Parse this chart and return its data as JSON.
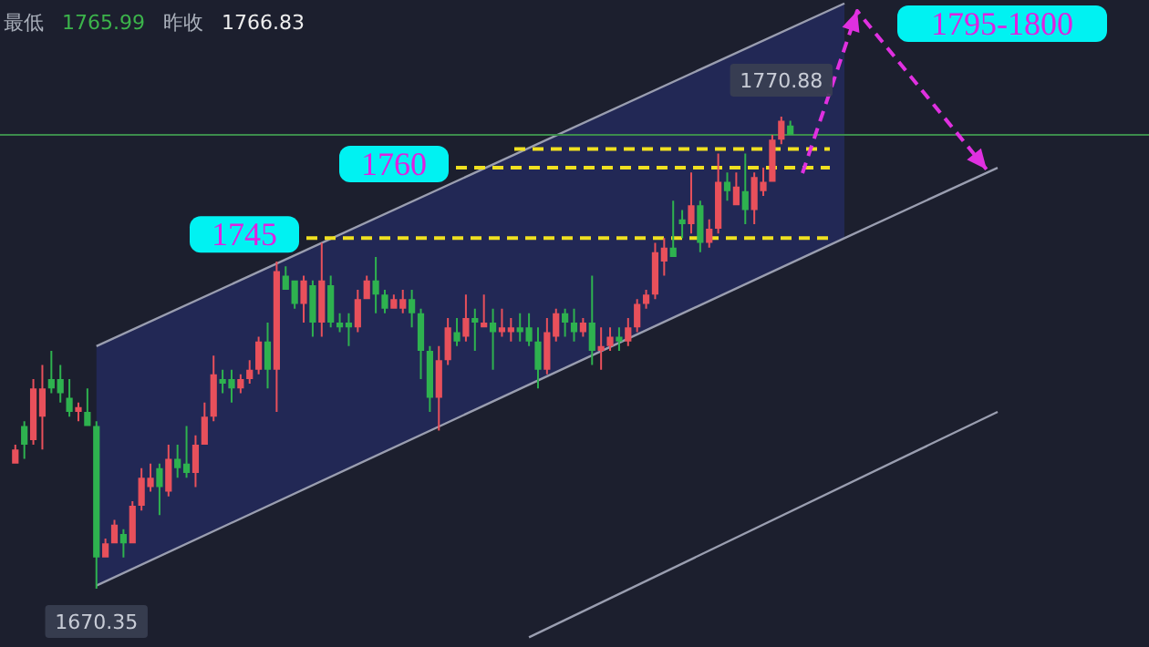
{
  "chart_data": {
    "type": "candlestick",
    "categories": [
      null,
      null,
      null,
      null,
      null,
      null,
      null,
      null,
      null,
      null,
      null,
      null,
      null,
      null,
      null,
      null,
      null,
      null,
      null,
      null,
      null,
      null,
      null,
      null,
      null,
      null,
      null,
      null,
      null,
      null,
      null,
      null,
      null,
      null,
      null,
      null,
      null,
      null,
      null,
      null,
      null,
      null,
      null,
      null,
      null,
      null,
      null,
      null,
      null,
      null,
      null,
      null,
      null,
      null,
      null,
      null,
      null,
      null,
      null,
      null,
      null,
      null,
      null,
      null,
      null,
      null,
      null,
      null,
      null,
      null,
      null,
      null,
      null,
      null,
      null,
      null,
      null,
      null,
      null,
      null,
      null,
      null,
      null,
      null,
      null,
      null,
      null,
      null,
      null,
      null,
      null,
      null,
      null,
      null,
      null,
      null,
      null,
      null,
      null,
      null,
      null,
      null,
      null,
      null,
      null,
      null,
      null,
      null,
      null,
      null,
      null,
      null,
      null,
      null,
      null,
      null,
      null,
      null,
      null,
      null,
      null,
      null,
      null,
      null,
      null,
      null
    ],
    "ohlc": [
      [
        1697,
        1701,
        1697,
        1700
      ],
      [
        1705,
        1706,
        1698,
        1701
      ],
      [
        1702,
        1715,
        1701,
        1713
      ],
      [
        1707,
        1718,
        1700,
        1713
      ],
      [
        1715,
        1721,
        1712,
        1713
      ],
      [
        1715,
        1718,
        1710,
        1712
      ],
      [
        1711,
        1715,
        1707,
        1708
      ],
      [
        1708,
        1710,
        1706,
        1709
      ],
      [
        1708,
        1713,
        1705,
        1705
      ],
      [
        1705,
        1706,
        1670.35,
        1677
      ],
      [
        1677,
        1681,
        1677,
        1680
      ],
      [
        1680,
        1685,
        1680,
        1684
      ],
      [
        1682,
        1683,
        1677,
        1680
      ],
      [
        1680,
        1689,
        1680,
        1688
      ],
      [
        1688,
        1696,
        1687,
        1694
      ],
      [
        1692,
        1697,
        1691,
        1694
      ],
      [
        1696,
        1697,
        1686,
        1692
      ],
      [
        1691,
        1701,
        1690,
        1698
      ],
      [
        1698,
        1701,
        1694,
        1696
      ],
      [
        1697,
        1705,
        1694,
        1695
      ],
      [
        1695,
        1703,
        1692,
        1701
      ],
      [
        1701,
        1710,
        1701,
        1707
      ],
      [
        1707,
        1720,
        1706,
        1716
      ],
      [
        1715,
        1717,
        1712,
        1714
      ],
      [
        1715,
        1717,
        1710,
        1713
      ],
      [
        1713,
        1716,
        1712,
        1715
      ],
      [
        1715,
        1719,
        1714,
        1717
      ],
      [
        1717,
        1724,
        1716,
        1723
      ],
      [
        1723,
        1727,
        1713,
        1717
      ],
      [
        1717,
        1740,
        1708,
        1738
      ],
      [
        1737,
        1739,
        1734,
        1734
      ],
      [
        1736,
        1736,
        1730,
        1731
      ],
      [
        1731,
        1737,
        1727,
        1736
      ],
      [
        1735,
        1736,
        1724,
        1727
      ],
      [
        1727,
        1744,
        1724,
        1736
      ],
      [
        1735,
        1737,
        1726,
        1727
      ],
      [
        1727,
        1729,
        1725,
        1726
      ],
      [
        1727,
        1729,
        1722,
        1726
      ],
      [
        1726,
        1734,
        1725,
        1732
      ],
      [
        1732,
        1737,
        1732,
        1736
      ],
      [
        1736,
        1741,
        1729,
        1733
      ],
      [
        1733,
        1734,
        1729,
        1730
      ],
      [
        1730,
        1733,
        1730,
        1732
      ],
      [
        1730,
        1734,
        1729,
        1732
      ],
      [
        1732,
        1734,
        1726,
        1729
      ],
      [
        1729,
        1730,
        1715,
        1721
      ],
      [
        1721,
        1722,
        1708,
        1711
      ],
      [
        1711,
        1722,
        1704,
        1719
      ],
      [
        1719,
        1728,
        1718,
        1726
      ],
      [
        1725,
        1728,
        1722,
        1723
      ],
      [
        1724,
        1733,
        1723,
        1728
      ],
      [
        1728,
        1730,
        1721,
        1727
      ],
      [
        1726,
        1733,
        1726,
        1727
      ],
      [
        1727,
        1730,
        1717,
        1725
      ],
      [
        1725,
        1730,
        1724,
        1726
      ],
      [
        1725,
        1728,
        1723,
        1726
      ],
      [
        1726,
        1729,
        1723,
        1725
      ],
      [
        1726,
        1729,
        1722,
        1723
      ],
      [
        1723,
        1726,
        1713,
        1717
      ],
      [
        1717,
        1728,
        1716,
        1725
      ],
      [
        1724,
        1730,
        1723,
        1729
      ],
      [
        1729,
        1730,
        1724,
        1727
      ],
      [
        1727,
        1730,
        1723,
        1725
      ],
      [
        1725,
        1728,
        1724,
        1727
      ],
      [
        1727,
        1737,
        1718,
        1721
      ],
      [
        1721,
        1726,
        1717,
        1722
      ],
      [
        1722,
        1726,
        1721,
        1724
      ],
      [
        1724,
        1726,
        1721,
        1723
      ],
      [
        1723,
        1728,
        1722,
        1726
      ],
      [
        1726,
        1732,
        1725,
        1731
      ],
      [
        1731,
        1734,
        1730,
        1733
      ],
      [
        1733,
        1744,
        1732,
        1742
      ],
      [
        1740,
        1745,
        1737,
        1743
      ],
      [
        1743,
        1753,
        1741,
        1741
      ],
      [
        1749,
        1751,
        1745,
        1748
      ],
      [
        1748,
        1759,
        1746,
        1752
      ],
      [
        1752,
        1753,
        1742,
        1744
      ],
      [
        1744,
        1749,
        1743,
        1747
      ],
      [
        1747,
        1763,
        1746,
        1757
      ],
      [
        1757,
        1759,
        1753,
        1755
      ],
      [
        1752,
        1759,
        1752,
        1756
      ],
      [
        1755,
        1763,
        1748,
        1751
      ],
      [
        1751,
        1759,
        1748,
        1758
      ],
      [
        1755,
        1760,
        1754,
        1757
      ],
      [
        1757,
        1767,
        1757,
        1766
      ],
      [
        1766,
        1770.88,
        1765,
        1770
      ],
      [
        1769,
        1770,
        1767,
        1767
      ],
      null,
      null,
      null,
      null,
      null,
      null,
      null,
      null,
      null,
      null,
      null,
      null,
      null,
      null,
      null,
      null,
      null,
      null,
      null,
      null,
      null,
      null,
      null,
      null,
      null,
      null,
      null,
      null,
      null,
      null,
      null,
      null,
      null,
      null,
      null,
      null,
      null,
      null,
      null
    ],
    "colors": [
      "#e8505b",
      "#2eb24f",
      "#e8505b",
      "#e8505b",
      "#2eb24f",
      "#2eb24f",
      "#2eb24f",
      "#e8505b",
      "#2eb24f",
      "#2eb24f",
      "#e8505b",
      "#e8505b",
      "#2eb24f",
      "#e8505b",
      "#e8505b",
      "#e8505b",
      "#2eb24f",
      "#e8505b",
      "#2eb24f",
      "#2eb24f",
      "#e8505b",
      "#e8505b",
      "#e8505b",
      "#2eb24f",
      "#2eb24f",
      "#e8505b",
      "#e8505b",
      "#e8505b",
      "#2eb24f",
      "#e8505b",
      "#2eb24f",
      "#2eb24f",
      "#e8505b",
      "#2eb24f",
      "#e8505b",
      "#2eb24f",
      "#2eb24f",
      "#2eb24f",
      "#e8505b",
      "#e8505b",
      "#2eb24f",
      "#2eb24f",
      "#e8505b",
      "#e8505b",
      "#2eb24f",
      "#2eb24f",
      "#2eb24f",
      "#e8505b",
      "#e8505b",
      "#2eb24f",
      "#e8505b",
      "#2eb24f",
      "#e8505b",
      "#2eb24f",
      "#e8505b",
      "#e8505b",
      "#2eb24f",
      "#2eb24f",
      "#2eb24f",
      "#e8505b",
      "#e8505b",
      "#2eb24f",
      "#2eb24f",
      "#e8505b",
      "#2eb24f",
      "#e8505b",
      "#e8505b",
      "#2eb24f",
      "#e8505b",
      "#e8505b",
      "#e8505b",
      "#e8505b",
      "#e8505b",
      "#2eb24f",
      "#2eb24f",
      "#e8505b",
      "#2eb24f",
      "#e8505b",
      "#e8505b",
      "#2eb24f",
      "#e8505b",
      "#2eb24f",
      "#e8505b",
      "#e8505b",
      "#e8505b",
      "#e8505b",
      "#2eb24f",
      null,
      null,
      null,
      null,
      null,
      null,
      null,
      null,
      null,
      null,
      null,
      null,
      null,
      null,
      null,
      null,
      null,
      null,
      null,
      null,
      null,
      null,
      null,
      null,
      null,
      null,
      null,
      null,
      null,
      null,
      null,
      null,
      null,
      null,
      null,
      null,
      null,
      null,
      null
    ],
    "series": [
      {
        "type": "line",
        "color": "#9a9eb0",
        "line_style": "solid",
        "values": [
          null,
          null,
          null,
          null,
          null,
          null,
          null,
          null,
          null,
          1722,
          null,
          null,
          null,
          null,
          null,
          null,
          null,
          null,
          null,
          null,
          null,
          null,
          null,
          null,
          null,
          null,
          null,
          null,
          null,
          null,
          null,
          null,
          null,
          null,
          null,
          null,
          null,
          null,
          null,
          null,
          null,
          null,
          null,
          null,
          null,
          null,
          null,
          null,
          null,
          null,
          null,
          null,
          null,
          null,
          null,
          null,
          null,
          null,
          null,
          null,
          null,
          null,
          null,
          null,
          null,
          null,
          null,
          null,
          null,
          null,
          null,
          null,
          null,
          null,
          null,
          null,
          null,
          null,
          null,
          null,
          null,
          null,
          null,
          null,
          null,
          null,
          null,
          null,
          null,
          null,
          null,
          null,
          1795,
          null,
          null,
          null,
          null,
          null,
          null,
          null,
          null,
          null,
          null,
          null,
          null,
          null,
          null,
          null,
          null,
          null,
          null,
          null,
          null,
          null,
          null,
          null,
          null,
          null,
          null,
          null,
          null,
          null,
          null,
          null,
          null,
          null
        ]
      },
      {
        "type": "line",
        "color": "#9a9eb0",
        "line_style": "solid",
        "values": [
          null,
          null,
          null,
          null,
          null,
          null,
          null,
          null,
          null,
          1671,
          null,
          null,
          null,
          null,
          null,
          null,
          null,
          null,
          null,
          null,
          null,
          null,
          null,
          null,
          null,
          null,
          null,
          null,
          null,
          null,
          null,
          null,
          null,
          null,
          null,
          null,
          null,
          null,
          null,
          null,
          null,
          null,
          null,
          null,
          null,
          null,
          null,
          null,
          null,
          null,
          null,
          null,
          null,
          null,
          null,
          null,
          null,
          null,
          null,
          null,
          null,
          null,
          null,
          null,
          null,
          null,
          null,
          null,
          null,
          null,
          null,
          null,
          null,
          null,
          null,
          null,
          null,
          null,
          null,
          null,
          null,
          null,
          null,
          null,
          null,
          null,
          null,
          null,
          null,
          null,
          null,
          null,
          1745,
          null,
          null,
          null,
          null,
          null,
          null,
          null,
          null,
          null,
          null,
          null,
          null,
          null,
          null,
          null,
          null,
          1760,
          null,
          null,
          null,
          null,
          null,
          null,
          null,
          null,
          null,
          null,
          null,
          null,
          null,
          null,
          null,
          null
        ],
        "lower": [
          null,
          null,
          null,
          null,
          null,
          null,
          null,
          null,
          null,
          1671,
          null,
          null,
          null,
          null,
          null,
          null,
          null,
          null,
          null,
          null,
          null,
          null,
          null,
          null,
          null,
          null,
          null,
          null,
          null,
          null,
          null,
          null,
          null,
          null,
          null,
          null,
          null,
          null,
          null,
          null,
          null,
          null,
          null,
          null,
          null,
          null,
          null,
          null,
          null,
          null,
          null,
          null,
          null,
          null,
          null,
          null,
          null,
          null,
          null,
          null,
          null,
          null,
          null,
          null,
          null,
          null,
          null,
          null,
          null,
          null,
          null,
          null,
          null,
          null,
          null,
          null,
          null,
          null,
          null,
          null,
          null,
          null,
          null,
          null,
          null,
          null,
          null,
          null,
          null,
          null,
          null,
          null,
          1745,
          null,
          null,
          null,
          null,
          null,
          null,
          null,
          null,
          null,
          null,
          null,
          null,
          null,
          null,
          null,
          null,
          null,
          null,
          null,
          null,
          null,
          null,
          null,
          null,
          null,
          null,
          null,
          null,
          null,
          null,
          null,
          null,
          null
        ],
        "upper": [
          null,
          null,
          null,
          null,
          null,
          null,
          null,
          null,
          null,
          1722,
          null,
          null,
          null,
          null,
          null,
          null,
          null,
          null,
          null,
          null,
          null,
          null,
          null,
          null,
          null,
          null,
          null,
          null,
          null,
          null,
          null,
          null,
          null,
          null,
          null,
          null,
          null,
          null,
          null,
          null,
          null,
          null,
          null,
          null,
          null,
          null,
          null,
          null,
          null,
          null,
          null,
          null,
          null,
          null,
          null,
          null,
          null,
          null,
          null,
          null,
          null,
          null,
          null,
          null,
          null,
          null,
          null,
          null,
          null,
          null,
          null,
          null,
          null,
          null,
          null,
          null,
          null,
          null,
          null,
          null,
          null,
          null,
          null,
          null,
          null,
          null,
          null,
          null,
          null,
          null,
          null,
          null,
          1795,
          null,
          null,
          null,
          null,
          null,
          null,
          null,
          null,
          null,
          null,
          null,
          null,
          null,
          null,
          null,
          null,
          null,
          null,
          null,
          null,
          null,
          null,
          null,
          null,
          null,
          null,
          null,
          null,
          null,
          null,
          null,
          null,
          null
        ]
      },
      {
        "type": "line",
        "color": "#9a9eb0",
        "line_style": "solid",
        "values": [
          null,
          null,
          null,
          null,
          null,
          null,
          null,
          null,
          null,
          null,
          null,
          null,
          null,
          null,
          null,
          null,
          null,
          null,
          null,
          null,
          null,
          null,
          null,
          null,
          null,
          null,
          null,
          null,
          null,
          null,
          null,
          null,
          null,
          null,
          null,
          null,
          null,
          null,
          null,
          null,
          null,
          null,
          null,
          null,
          null,
          null,
          null,
          null,
          null,
          null,
          null,
          null,
          null,
          null,
          null,
          null,
          null,
          1660,
          null,
          null,
          null,
          null,
          null,
          null,
          null,
          null,
          null,
          null,
          null,
          null,
          null,
          null,
          null,
          null,
          null,
          null,
          null,
          null,
          null,
          null,
          null,
          null,
          null,
          null,
          null,
          null,
          null,
          null,
          null,
          null,
          null,
          null,
          null,
          null,
          null,
          null,
          null,
          null,
          null,
          null,
          null,
          null,
          null,
          null,
          null,
          null,
          null,
          null,
          null,
          1708,
          null,
          null,
          null,
          null,
          null,
          null,
          null,
          null,
          null,
          null,
          null,
          null,
          null,
          null,
          null,
          null
        ]
      }
    ],
    "ref_lines": [
      {
        "axis": "y",
        "value": 1745,
        "label": "1745",
        "color": "#f0e020",
        "line_style": "dashed"
      },
      {
        "axis": "y",
        "value": 1760,
        "label": "1760",
        "color": "#f0e020",
        "line_style": "dashed"
      },
      {
        "axis": "y",
        "value": 1764,
        "label": null,
        "color": "#f0e020",
        "line_style": "dashed"
      },
      {
        "axis": "y",
        "value": 1767,
        "label": null,
        "color": "#3c8c4c",
        "line_style": "solid"
      }
    ],
    "annotations": [
      "最低",
      "1765.99",
      "昨收",
      "1766.83",
      "1795-1800",
      {
        "text": "1770.88",
        "y": 1770.88
      },
      {
        "text": "1670.35",
        "y": 1670.35
      }
    ],
    "tick_labels": false
  }
}
